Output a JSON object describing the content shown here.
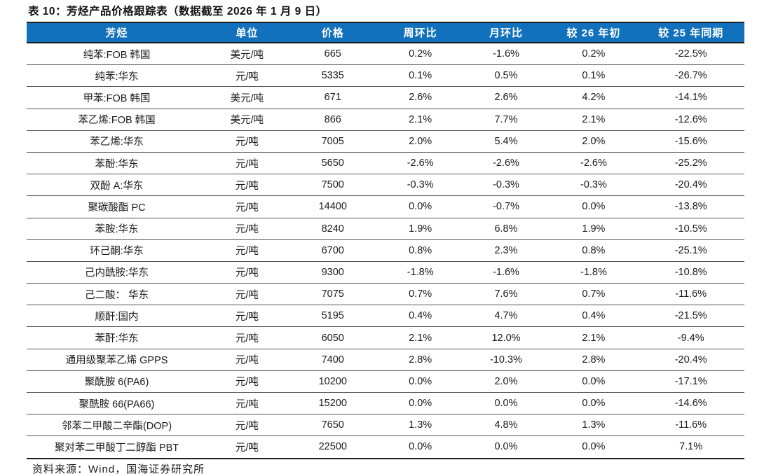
{
  "title": "表 10：芳烃产品价格跟踪表（数据截至 2026 年 1 月 9 日）",
  "source_note": "资料来源：Wind，国海证券研究所",
  "accent_color": "#1171BD",
  "chart_data": {
    "type": "table",
    "title": "表 10：芳烃产品价格跟踪表（数据截至 2026 年 1 月 9 日）",
    "headers": [
      "芳烃",
      "单位",
      "价格",
      "周环比",
      "月环比",
      "较 26 年初",
      "较 25 年同期"
    ],
    "rows": [
      [
        "纯苯:FOB 韩国",
        "美元/吨",
        "665",
        "0.2%",
        "-1.6%",
        "0.2%",
        "-22.5%"
      ],
      [
        "纯苯:华东",
        "元/吨",
        "5335",
        "0.1%",
        "0.5%",
        "0.1%",
        "-26.7%"
      ],
      [
        "甲苯:FOB 韩国",
        "美元/吨",
        "671",
        "2.6%",
        "2.6%",
        "4.2%",
        "-14.1%"
      ],
      [
        "苯乙烯:FOB 韩国",
        "美元/吨",
        "866",
        "2.1%",
        "7.7%",
        "2.1%",
        "-12.6%"
      ],
      [
        "苯乙烯:华东",
        "元/吨",
        "7005",
        "2.0%",
        "5.4%",
        "2.0%",
        "-15.6%"
      ],
      [
        "苯酚:华东",
        "元/吨",
        "5650",
        "-2.6%",
        "-2.6%",
        "-2.6%",
        "-25.2%"
      ],
      [
        "双酚 A:华东",
        "元/吨",
        "7500",
        "-0.3%",
        "-0.3%",
        "-0.3%",
        "-20.4%"
      ],
      [
        "聚碳酸酯 PC",
        "元/吨",
        "14400",
        "0.0%",
        "-0.7%",
        "0.0%",
        "-13.8%"
      ],
      [
        "苯胺:华东",
        "元/吨",
        "8240",
        "1.9%",
        "6.8%",
        "1.9%",
        "-10.5%"
      ],
      [
        "环己酮:华东",
        "元/吨",
        "6700",
        "0.8%",
        "2.3%",
        "0.8%",
        "-25.1%"
      ],
      [
        "己内酰胺:华东",
        "元/吨",
        "9300",
        "-1.8%",
        "-1.6%",
        "-1.8%",
        "-10.8%"
      ],
      [
        "己二酸： 华东",
        "元/吨",
        "7075",
        "0.7%",
        "7.6%",
        "0.7%",
        "-11.6%"
      ],
      [
        "顺酐:国内",
        "元/吨",
        "5195",
        "0.4%",
        "4.7%",
        "0.4%",
        "-21.5%"
      ],
      [
        "苯酐:华东",
        "元/吨",
        "6050",
        "2.1%",
        "12.0%",
        "2.1%",
        "-9.4%"
      ],
      [
        "通用级聚苯乙烯 GPPS",
        "元/吨",
        "7400",
        "2.8%",
        "-10.3%",
        "2.8%",
        "-20.4%"
      ],
      [
        "聚酰胺 6(PA6)",
        "元/吨",
        "10200",
        "0.0%",
        "2.0%",
        "0.0%",
        "-17.1%"
      ],
      [
        "聚酰胺 66(PA66)",
        "元/吨",
        "15200",
        "0.0%",
        "0.0%",
        "0.0%",
        "-14.6%"
      ],
      [
        "邻苯二甲酸二辛酯(DOP)",
        "元/吨",
        "7650",
        "1.3%",
        "4.8%",
        "1.3%",
        "-11.6%"
      ],
      [
        "聚对苯二甲酸丁二醇酯 PBT",
        "元/吨",
        "22500",
        "0.0%",
        "0.0%",
        "0.0%",
        "7.1%"
      ]
    ]
  }
}
